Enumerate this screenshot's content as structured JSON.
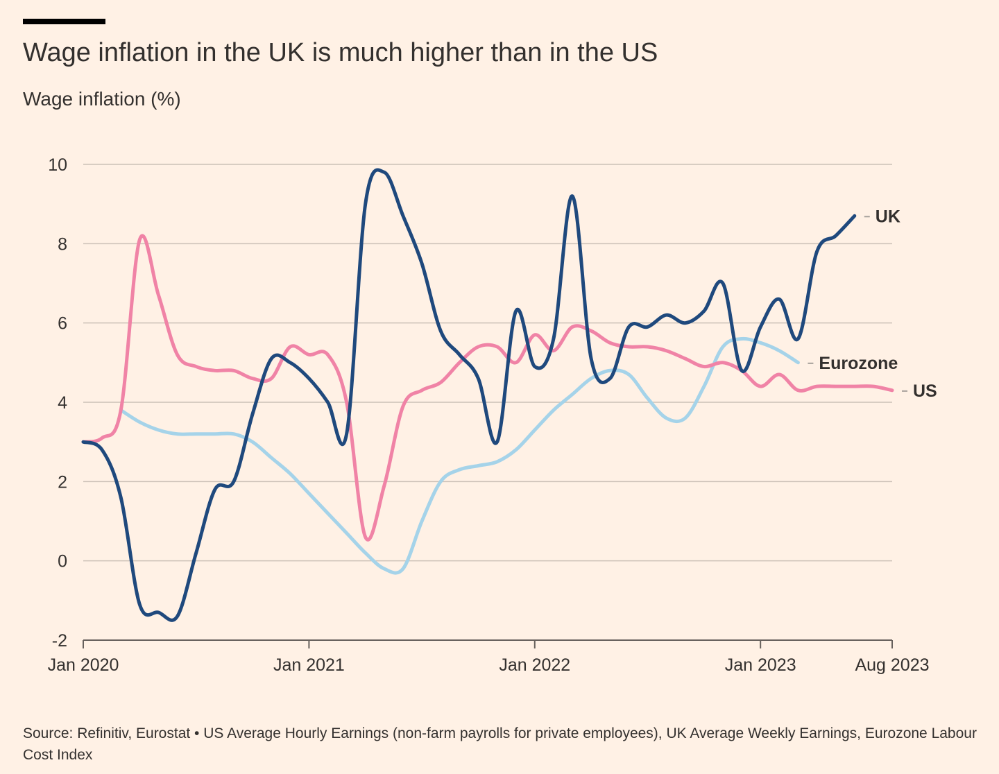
{
  "header": {
    "title": "Wage inflation in the UK is much higher than in the US",
    "subtitle": "Wage inflation (%)"
  },
  "footer": {
    "source": "Source: Refinitiv, Eurostat • US Average Hourly Earnings (non-farm payrolls for private employees), UK Average Weekly Earnings, Eurozone Labour Cost Index"
  },
  "chart_data": {
    "type": "line",
    "title": "Wage inflation in the UK is much higher than in the US",
    "ylabel": "Wage inflation (%)",
    "xlabel": "",
    "ylim": [
      -2,
      10
    ],
    "yticks": [
      -2,
      0,
      2,
      4,
      6,
      8,
      10
    ],
    "xticks": [
      "Jan 2020",
      "Jan 2021",
      "Jan 2022",
      "Jan 2023",
      "Aug 2023"
    ],
    "x_range": [
      "2020-01",
      "2023-08"
    ],
    "grid": "horizontal",
    "legend": "direct labels at line ends",
    "series": [
      {
        "name": "UK",
        "color": "#1F497D",
        "x": [
          "2020-01",
          "2020-02",
          "2020-03",
          "2020-04",
          "2020-05",
          "2020-06",
          "2020-07",
          "2020-08",
          "2020-09",
          "2020-10",
          "2020-11",
          "2020-12",
          "2021-01",
          "2021-02",
          "2021-03",
          "2021-04",
          "2021-05",
          "2021-06",
          "2021-07",
          "2021-08",
          "2021-09",
          "2021-10",
          "2021-11",
          "2021-12",
          "2022-01",
          "2022-02",
          "2022-03",
          "2022-04",
          "2022-05",
          "2022-06",
          "2022-07",
          "2022-08",
          "2022-09",
          "2022-10",
          "2022-11",
          "2022-12",
          "2023-01",
          "2023-02",
          "2023-03",
          "2023-04",
          "2023-05",
          "2023-06"
        ],
        "values": [
          3.0,
          2.8,
          1.6,
          -1.1,
          -1.3,
          -1.4,
          0.2,
          1.8,
          2.0,
          3.7,
          5.1,
          5.0,
          4.6,
          4.0,
          3.2,
          9.0,
          9.8,
          8.7,
          7.5,
          5.8,
          5.2,
          4.6,
          3.0,
          6.3,
          4.9,
          5.6,
          9.2,
          5.1,
          4.6,
          5.9,
          5.9,
          6.2,
          6.0,
          6.3,
          7.0,
          4.8,
          5.9,
          6.6,
          5.6,
          7.8,
          8.2,
          8.7
        ]
      },
      {
        "name": "US",
        "color": "#F083A6",
        "x": [
          "2020-01",
          "2020-02",
          "2020-03",
          "2020-04",
          "2020-05",
          "2020-06",
          "2020-07",
          "2020-08",
          "2020-09",
          "2020-10",
          "2020-11",
          "2020-12",
          "2021-01",
          "2021-02",
          "2021-03",
          "2021-04",
          "2021-05",
          "2021-06",
          "2021-07",
          "2021-08",
          "2021-09",
          "2021-10",
          "2021-11",
          "2021-12",
          "2022-01",
          "2022-02",
          "2022-03",
          "2022-04",
          "2022-05",
          "2022-06",
          "2022-07",
          "2022-08",
          "2022-09",
          "2022-10",
          "2022-11",
          "2022-12",
          "2023-01",
          "2023-02",
          "2023-03",
          "2023-04",
          "2023-05",
          "2023-06",
          "2023-07",
          "2023-08"
        ],
        "values": [
          3.0,
          3.1,
          3.8,
          8.1,
          6.7,
          5.2,
          4.9,
          4.8,
          4.8,
          4.6,
          4.6,
          5.4,
          5.2,
          5.2,
          4.0,
          0.6,
          1.9,
          3.9,
          4.3,
          4.5,
          5.0,
          5.4,
          5.4,
          5.0,
          5.7,
          5.3,
          5.9,
          5.8,
          5.5,
          5.4,
          5.4,
          5.3,
          5.1,
          4.9,
          5.0,
          4.8,
          4.4,
          4.7,
          4.3,
          4.4,
          4.4,
          4.4,
          4.4,
          4.3
        ]
      },
      {
        "name": "Eurozone",
        "color": "#A5D3E9",
        "x": [
          "2020-03",
          "2020-04",
          "2020-05",
          "2020-06",
          "2020-07",
          "2020-08",
          "2020-09",
          "2020-10",
          "2020-11",
          "2020-12",
          "2021-01",
          "2021-02",
          "2021-03",
          "2021-04",
          "2021-05",
          "2021-06",
          "2021-07",
          "2021-08",
          "2021-09",
          "2021-10",
          "2021-11",
          "2021-12",
          "2022-01",
          "2022-02",
          "2022-03",
          "2022-04",
          "2022-05",
          "2022-06",
          "2022-07",
          "2022-08",
          "2022-09",
          "2022-10",
          "2022-11",
          "2022-12",
          "2023-01",
          "2023-02",
          "2023-03"
        ],
        "values": [
          3.8,
          3.5,
          3.3,
          3.2,
          3.2,
          3.2,
          3.2,
          3.0,
          2.6,
          2.2,
          1.7,
          1.2,
          0.7,
          0.2,
          -0.2,
          -0.2,
          1.0,
          2.0,
          2.3,
          2.4,
          2.5,
          2.8,
          3.3,
          3.8,
          4.2,
          4.6,
          4.8,
          4.7,
          4.1,
          3.6,
          3.6,
          4.4,
          5.4,
          5.6,
          5.5,
          5.3,
          5.0
        ]
      }
    ]
  }
}
